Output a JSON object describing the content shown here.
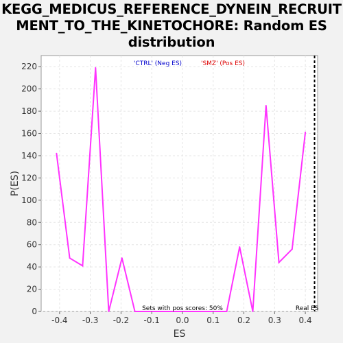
{
  "chart_data": {
    "type": "line",
    "title": "KEGG_MEDICUS_REFERENCE_DYNEIN_RECRUITMENT_TO_THE_KINETOCHORE: Random ES distribution",
    "title_lines": [
      "KEGG_MEDICUS_REFERENCE_DYNEIN_RECRUIT",
      "MENT_TO_THE_KINETOCHORE: Random ES",
      "distribution"
    ],
    "xlabel": "ES",
    "ylabel": "P(ES)",
    "xlim": [
      -0.46,
      0.44
    ],
    "ylim": [
      0,
      230
    ],
    "x_ticks": [
      -0.4,
      -0.3,
      -0.2,
      -0.1,
      0.0,
      0.1,
      0.2,
      0.3,
      0.4
    ],
    "x_tick_labels": [
      "-0.4",
      "-0.3",
      "-0.2",
      "-0.1",
      "0.0",
      "0.1",
      "0.2",
      "0.3",
      "0.4"
    ],
    "y_ticks": [
      0,
      20,
      40,
      60,
      80,
      100,
      120,
      140,
      160,
      180,
      200,
      220
    ],
    "y_tick_labels": [
      "0",
      "20",
      "40",
      "60",
      "80",
      "100",
      "120",
      "140",
      "160",
      "180",
      "200",
      "220"
    ],
    "grid": true,
    "series": [
      {
        "color": "#ff33ff",
        "x": [
          -0.41,
          -0.367,
          -0.325,
          -0.283,
          -0.24,
          -0.197,
          -0.155,
          -0.112,
          -0.07,
          -0.027,
          0.016,
          0.058,
          0.101,
          0.144,
          0.186,
          0.229,
          0.272,
          0.314,
          0.357,
          0.4
        ],
        "y": [
          142,
          48,
          41,
          219,
          0,
          48,
          0,
          0,
          0,
          0,
          0,
          0,
          0,
          0,
          58,
          0,
          185,
          44,
          56,
          161
        ]
      }
    ],
    "real_es": {
      "x": 0.43,
      "label": "Real ES"
    },
    "legend": [
      {
        "label": "'CTRL' (Neg ES)",
        "color": "#0000cc"
      },
      {
        "label": "'SMZ' (Pos ES)",
        "color": "#dd0000"
      }
    ],
    "legend_placement": "top-center",
    "annotation": "Sets with pos scores: 50%"
  }
}
